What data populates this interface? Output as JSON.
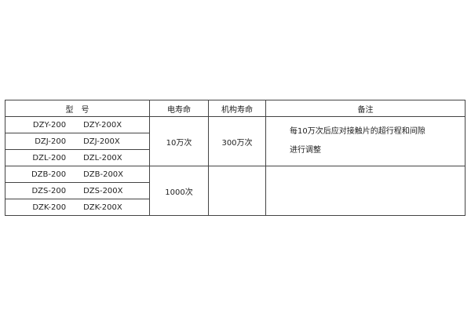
{
  "headers": [
    "型　号",
    "电寿命",
    "机构寿命",
    "备注"
  ],
  "rows": [
    {
      "model": "DZY-200",
      "model_x": "DZY-200X"
    },
    {
      "model": "DZJ-200",
      "model_x": "DZJ-200X"
    },
    {
      "model": "DZL-200",
      "model_x": "DZL-200X"
    },
    {
      "model": "DZB-200",
      "model_x": "DZB-200X"
    },
    {
      "model": "DZS-200",
      "model_x": "DZS-200X"
    },
    {
      "model": "DZK-200",
      "model_x": "DZK-200X"
    }
  ],
  "group1": {
    "electrical_life": "10万次",
    "mechanical_life": "300万次",
    "note_line1": "每10万次后应对接触片的超行程和间隙",
    "note_line2": "进行调整"
  },
  "group2": {
    "electrical_life": "1000次",
    "mechanical_life": "",
    "note": ""
  }
}
